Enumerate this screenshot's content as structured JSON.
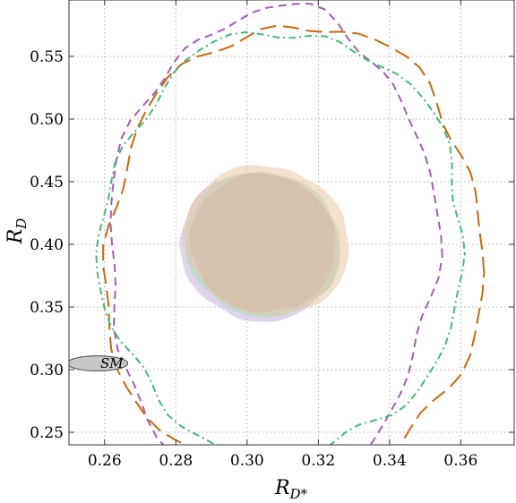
{
  "chart_data": {
    "type": "scatter",
    "title": "",
    "xlabel": {
      "main": "R",
      "sub": "D*"
    },
    "ylabel": {
      "main": "R",
      "sub": "D"
    },
    "xlim": [
      0.25,
      0.375
    ],
    "ylim": [
      0.24,
      0.595
    ],
    "xticks": [
      0.26,
      0.28,
      0.3,
      0.32,
      0.34,
      0.36
    ],
    "xtick_labels": [
      "0.26",
      "0.28",
      "0.30",
      "0.32",
      "0.34",
      "0.36"
    ],
    "yticks": [
      0.25,
      0.3,
      0.35,
      0.4,
      0.45,
      0.5,
      0.55
    ],
    "ytick_labels": [
      "0.25",
      "0.30",
      "0.35",
      "0.40",
      "0.45",
      "0.50",
      "0.55"
    ],
    "grid": true,
    "grid_style": "dotted",
    "colors": {
      "purple": "#a15fb0",
      "orange": "#c66a12",
      "green": "#48b87a",
      "sm_fill": "#c8c8c8"
    },
    "sm_point": {
      "label": "SM",
      "x": 0.258,
      "y": 0.305,
      "rx": 0.0085,
      "ry": 0.004
    },
    "filled_regions": [
      {
        "color": "#c9b3db",
        "cx": 0.3035,
        "cy": 0.398,
        "rx": 0.0225,
        "ry": 0.059,
        "tilt": -18
      },
      {
        "color": "#a6dfbf",
        "cx": 0.3045,
        "cy": 0.4,
        "rx": 0.022,
        "ry": 0.0575,
        "tilt": -16
      },
      {
        "color": "#e8c8a8",
        "cx": 0.3055,
        "cy": 0.403,
        "rx": 0.0235,
        "ry": 0.059,
        "tilt": -20
      },
      {
        "color": "#d6b8a6",
        "cx": 0.3045,
        "cy": 0.401,
        "rx": 0.0205,
        "ry": 0.055,
        "tilt": -18
      }
    ],
    "contours": [
      {
        "color": "#a15fb0",
        "dash": "9 6",
        "cx": 0.307,
        "cy": 0.395,
        "rx": 0.046,
        "ry": 0.193,
        "tilt": -2
      },
      {
        "color": "#c66a12",
        "dash": "18 8",
        "cx": 0.313,
        "cy": 0.388,
        "rx": 0.053,
        "ry": 0.188,
        "tilt": -4
      },
      {
        "color": "#48b87a",
        "dash": "2 4 8 4",
        "cx": 0.31,
        "cy": 0.4,
        "rx": 0.051,
        "ry": 0.17,
        "tilt": -3
      }
    ]
  }
}
